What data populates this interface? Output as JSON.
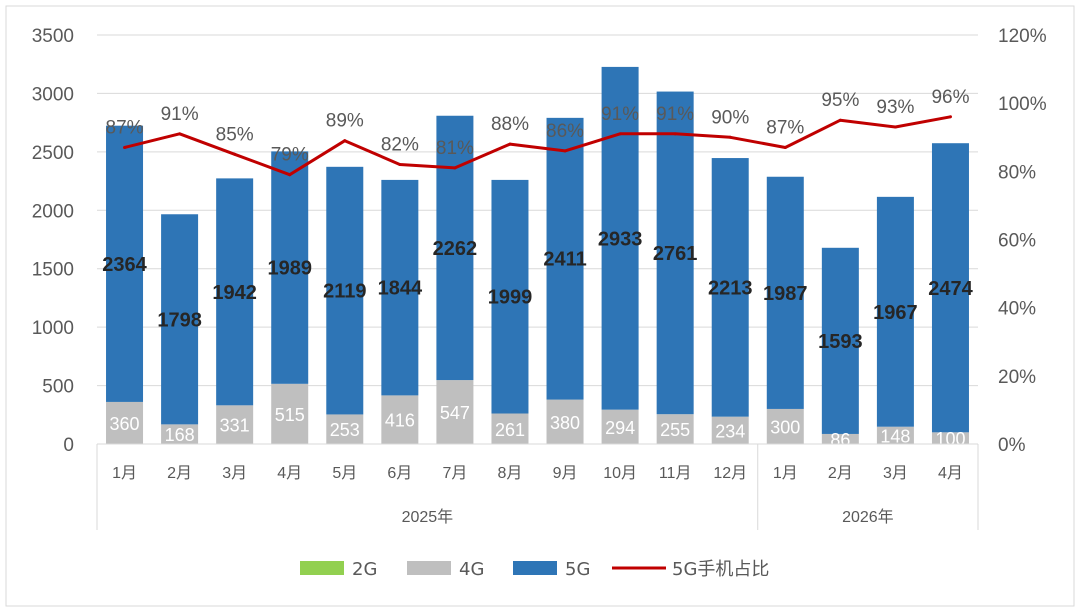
{
  "chart_data": {
    "type": "bar",
    "stacked": true,
    "categories": [
      "1月",
      "2月",
      "3月",
      "4月",
      "5月",
      "6月",
      "7月",
      "8月",
      "9月",
      "10月",
      "11月",
      "12月",
      "1月",
      "2月",
      "3月",
      "4月"
    ],
    "groups": [
      {
        "label": "2025年",
        "count": 12
      },
      {
        "label": "2026年",
        "count": 4
      }
    ],
    "series": [
      {
        "name": "2G",
        "color": "#92d050",
        "values": [
          0,
          0,
          0,
          0,
          0,
          0,
          0,
          0,
          0,
          0,
          0,
          0,
          0,
          0,
          0,
          0
        ]
      },
      {
        "name": "4G",
        "color": "#bfbfbf",
        "values": [
          360,
          168,
          331,
          515,
          253,
          416,
          547,
          261,
          380,
          294,
          255,
          234,
          300,
          86,
          148,
          100
        ]
      },
      {
        "name": "5G",
        "color": "#2e75b6",
        "values": [
          2364,
          1798,
          1942,
          1989,
          2119,
          1844,
          2262,
          1999,
          2411,
          2933,
          2761,
          2213,
          1987,
          1593,
          1967,
          2474
        ]
      }
    ],
    "line_series": {
      "name": "5G手机占比",
      "color": "#c00000",
      "axis": "right",
      "values": [
        87,
        91,
        85,
        79,
        89,
        82,
        81,
        88,
        86,
        91,
        91,
        90,
        87,
        95,
        93,
        96
      ],
      "labels": [
        "87%",
        "91%",
        "85%",
        "79%",
        "89%",
        "82%",
        "81%",
        "88%",
        "86%",
        "91%",
        "91%",
        "90%",
        "87%",
        "95%",
        "93%",
        "96%"
      ]
    },
    "y_left": {
      "min": 0,
      "max": 3500,
      "ticks": [
        "0",
        "500",
        "1000",
        "1500",
        "2000",
        "2500",
        "3000",
        "3500"
      ]
    },
    "y_right": {
      "min": 0,
      "max": 120,
      "ticks": [
        "0%",
        "20%",
        "40%",
        "60%",
        "80%",
        "100%",
        "120%"
      ]
    },
    "grid": true,
    "legend_position": "bottom",
    "legend": [
      "2G",
      "4G",
      "5G",
      "5G手机占比"
    ]
  }
}
